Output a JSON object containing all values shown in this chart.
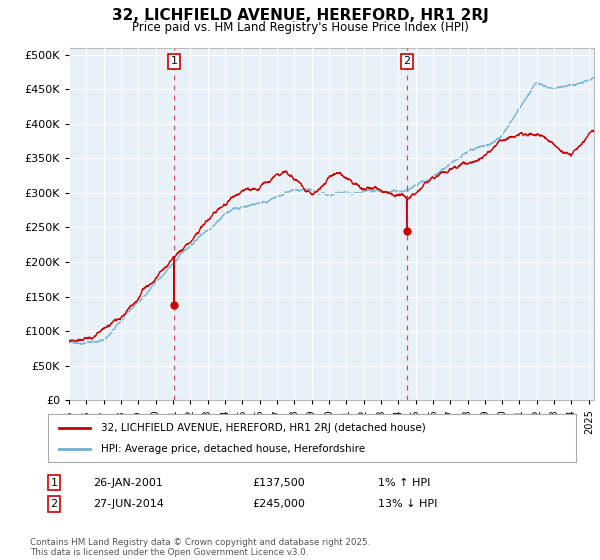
{
  "title": "32, LICHFIELD AVENUE, HEREFORD, HR1 2RJ",
  "subtitle": "Price paid vs. HM Land Registry's House Price Index (HPI)",
  "legend_line1": "32, LICHFIELD AVENUE, HEREFORD, HR1 2RJ (detached house)",
  "legend_line2": "HPI: Average price, detached house, Herefordshire",
  "footnote": "Contains HM Land Registry data © Crown copyright and database right 2025.\nThis data is licensed under the Open Government Licence v3.0.",
  "annotation1_date": "26-JAN-2001",
  "annotation1_price": "£137,500",
  "annotation1_hpi": "1% ↑ HPI",
  "annotation2_date": "27-JUN-2014",
  "annotation2_price": "£245,000",
  "annotation2_hpi": "13% ↓ HPI",
  "ylim": [
    0,
    510000
  ],
  "yticks": [
    0,
    50000,
    100000,
    150000,
    200000,
    250000,
    300000,
    350000,
    400000,
    450000,
    500000
  ],
  "hpi_color": "#6baed6",
  "price_color": "#cc0000",
  "vline_color": "#cc0000",
  "plot_bg": "#e8f0f8",
  "grid_color": "#ffffff",
  "annotation_box_color": "#cc0000",
  "sale1_x": 2001.07,
  "sale1_y": 137500,
  "sale2_x": 2014.5,
  "sale2_y": 245000,
  "xmin": 1995.0,
  "xmax": 2025.3
}
